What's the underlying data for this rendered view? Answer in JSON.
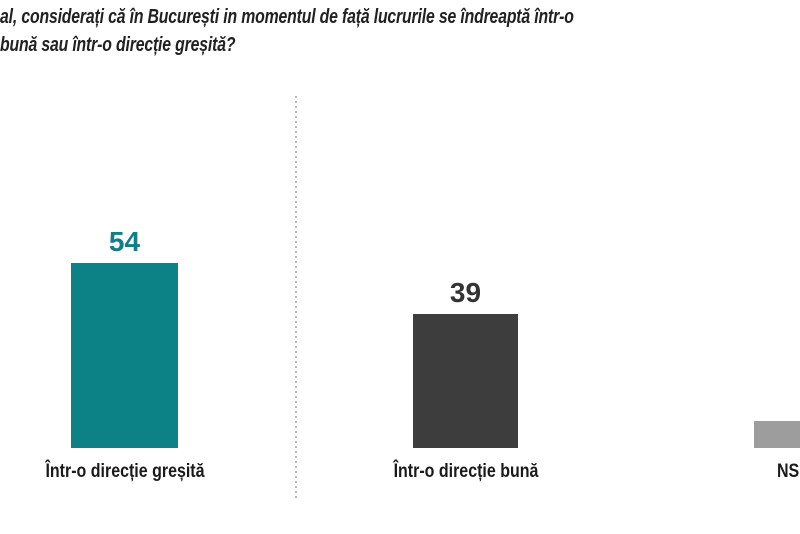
{
  "question": {
    "line1": "al, considerați că în București in momentul de față lucrurile se îndreaptă într-o",
    "line2": "bună sau într-o direcție greșită?"
  },
  "chart_data": {
    "type": "bar",
    "title": "al, considerați că în București in momentul de față lucrurile se îndreaptă într-o bună sau într-o direcție greșită?",
    "categories": [
      "Într-o direcție greșită",
      "Într-o direcție bună",
      "NS"
    ],
    "values": [
      54,
      39,
      8
    ],
    "value_labels_shown": [
      true,
      true,
      false
    ],
    "bar_colors": [
      "#0c8287",
      "#3d3d3d",
      "#9d9d9d"
    ],
    "value_label_colors": [
      "#0f7f8a",
      "#333333",
      ""
    ],
    "xlabel": "",
    "ylabel": "",
    "ylim": [
      0,
      60
    ],
    "grid": "off",
    "legend": "none",
    "axis_lines": "hidden",
    "notes": "third bar clipped at right edge of image; its value label not visible, value estimated from bar height; dashed vertical divider separates first category from the others"
  }
}
